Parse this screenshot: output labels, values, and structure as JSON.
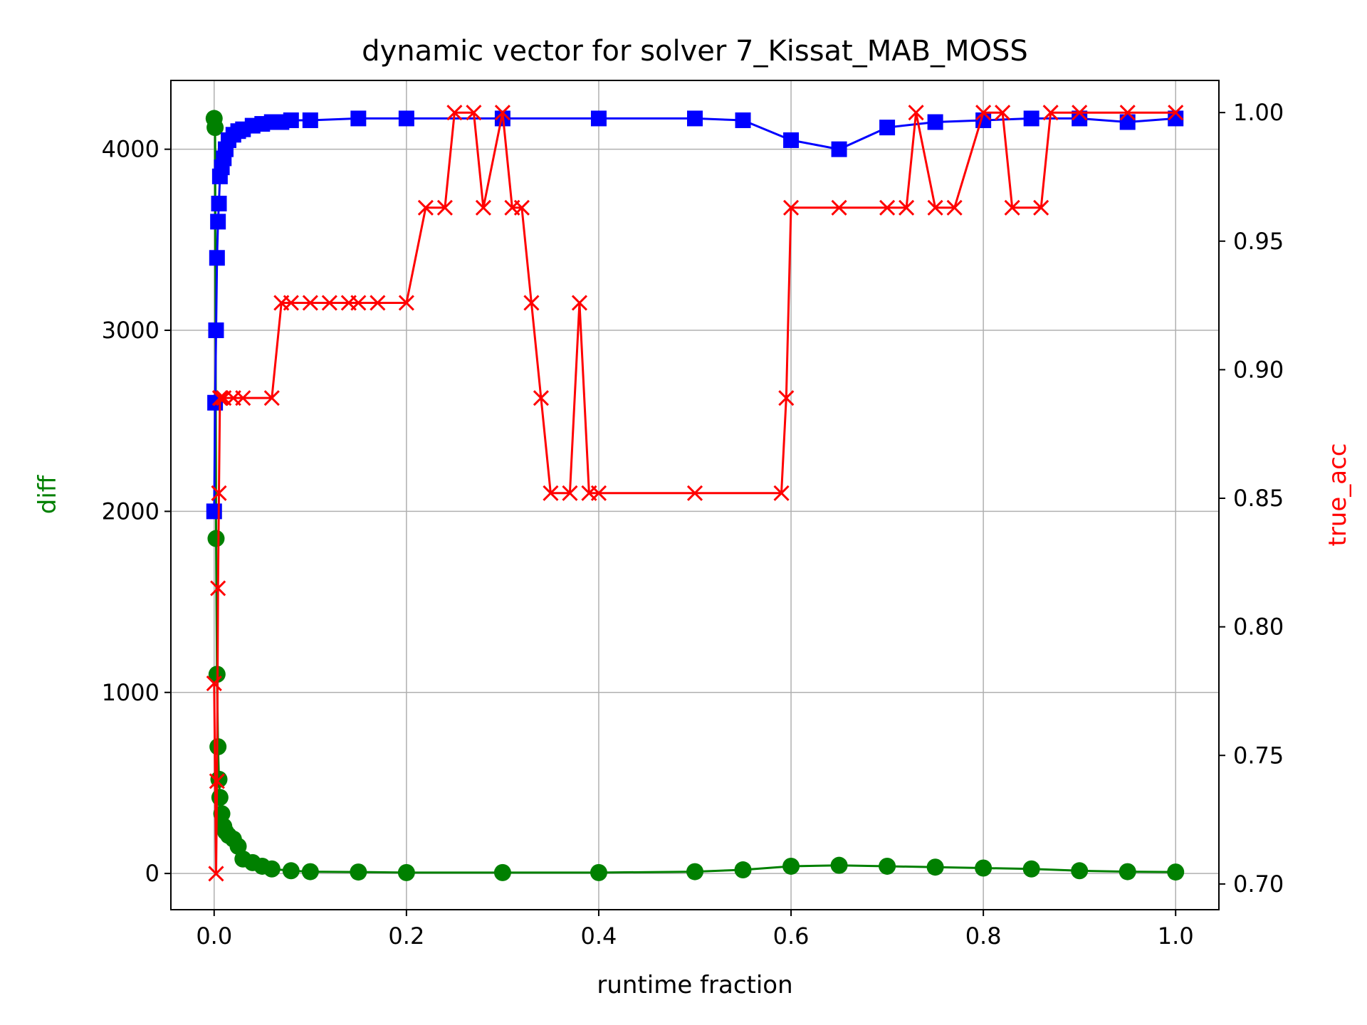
{
  "chart_data": {
    "type": "line",
    "title": "dynamic vector for solver 7_Kissat_MAB_MOSS",
    "xlabel": "runtime fraction",
    "ylabel_left": "diff",
    "ylabel_right": "true_acc",
    "xlim": [
      -0.045,
      1.045
    ],
    "ylim_left": [
      -200,
      4380
    ],
    "ylim_right": [
      0.69,
      1.0125
    ],
    "x_ticks": [
      0.0,
      0.2,
      0.4,
      0.6,
      0.8,
      1.0
    ],
    "x_tick_labels": [
      "0.0",
      "0.2",
      "0.4",
      "0.6",
      "0.8",
      "1.0"
    ],
    "y_left_ticks": [
      0,
      1000,
      2000,
      3000,
      4000
    ],
    "y_left_tick_labels": [
      "0",
      "1000",
      "2000",
      "3000",
      "4000"
    ],
    "y_right_ticks": [
      0.7,
      0.75,
      0.8,
      0.85,
      0.9,
      0.95,
      1.0
    ],
    "y_right_tick_labels": [
      "0.70",
      "0.75",
      "0.80",
      "0.85",
      "0.90",
      "0.95",
      "1.00"
    ],
    "grid": true,
    "colors": {
      "diff": "#008000",
      "blue_series": "#0000ff",
      "true_acc": "#ff0000"
    },
    "series": [
      {
        "axis": "left",
        "marker": "circle",
        "color": "#008000",
        "x": [
          0.0,
          0.001,
          0.002,
          0.003,
          0.004,
          0.005,
          0.006,
          0.008,
          0.01,
          0.012,
          0.015,
          0.02,
          0.025,
          0.03,
          0.04,
          0.05,
          0.06,
          0.08,
          0.1,
          0.15,
          0.2,
          0.3,
          0.4,
          0.5,
          0.55,
          0.6,
          0.65,
          0.7,
          0.75,
          0.8,
          0.85,
          0.9,
          0.95,
          1.0
        ],
        "y": [
          4170,
          4120,
          1850,
          1100,
          700,
          520,
          420,
          330,
          260,
          230,
          210,
          190,
          150,
          80,
          60,
          40,
          25,
          15,
          10,
          8,
          5,
          5,
          5,
          10,
          20,
          40,
          45,
          40,
          35,
          30,
          25,
          15,
          10,
          8
        ]
      },
      {
        "axis": "left",
        "marker": "square",
        "color": "#0000ff",
        "x": [
          0.0,
          0.001,
          0.002,
          0.003,
          0.004,
          0.005,
          0.006,
          0.008,
          0.01,
          0.012,
          0.015,
          0.02,
          0.025,
          0.03,
          0.04,
          0.05,
          0.06,
          0.07,
          0.08,
          0.1,
          0.15,
          0.2,
          0.3,
          0.4,
          0.5,
          0.55,
          0.6,
          0.65,
          0.7,
          0.75,
          0.8,
          0.85,
          0.9,
          0.95,
          1.0
        ],
        "y": [
          2000,
          2600,
          3000,
          3400,
          3600,
          3700,
          3850,
          3900,
          3950,
          4000,
          4050,
          4080,
          4100,
          4110,
          4130,
          4140,
          4150,
          4150,
          4160,
          4160,
          4170,
          4170,
          4170,
          4170,
          4170,
          4160,
          4050,
          4000,
          4120,
          4150,
          4160,
          4170,
          4170,
          4150,
          4170
        ]
      },
      {
        "axis": "right",
        "marker": "x",
        "color": "#ff0000",
        "x": [
          0.0,
          0.002,
          0.003,
          0.004,
          0.005,
          0.006,
          0.007,
          0.01,
          0.02,
          0.03,
          0.06,
          0.07,
          0.08,
          0.1,
          0.12,
          0.14,
          0.15,
          0.17,
          0.2,
          0.22,
          0.24,
          0.25,
          0.27,
          0.28,
          0.3,
          0.31,
          0.32,
          0.33,
          0.34,
          0.35,
          0.37,
          0.38,
          0.39,
          0.4,
          0.5,
          0.59,
          0.595,
          0.6,
          0.65,
          0.7,
          0.72,
          0.73,
          0.75,
          0.77,
          0.8,
          0.82,
          0.83,
          0.86,
          0.87,
          0.9,
          0.95,
          1.0
        ],
        "y": [
          0.778,
          0.704,
          0.74,
          0.815,
          0.852,
          0.889,
          0.889,
          0.889,
          0.889,
          0.889,
          0.889,
          0.926,
          0.926,
          0.926,
          0.926,
          0.926,
          0.926,
          0.926,
          0.926,
          0.963,
          0.963,
          1.0,
          1.0,
          0.963,
          1.0,
          0.963,
          0.963,
          0.926,
          0.889,
          0.852,
          0.852,
          0.926,
          0.852,
          0.852,
          0.852,
          0.852,
          0.889,
          0.963,
          0.963,
          0.963,
          0.963,
          1.0,
          0.963,
          0.963,
          1.0,
          1.0,
          0.963,
          0.963,
          1.0,
          1.0,
          1.0,
          1.0
        ]
      }
    ]
  }
}
